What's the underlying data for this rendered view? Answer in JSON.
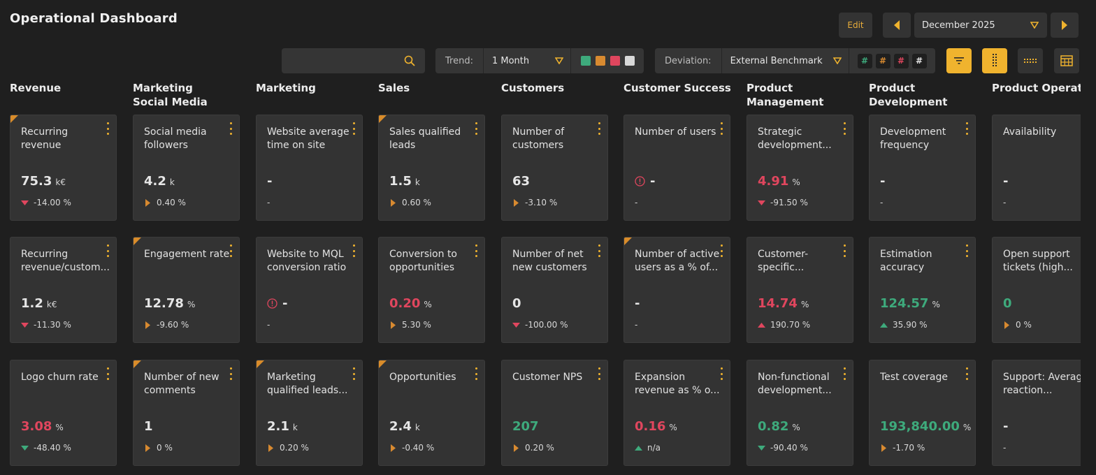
{
  "header": {
    "title": "Operational Dashboard",
    "edit_label": "Edit",
    "month": "December 2025"
  },
  "search": {
    "placeholder": "",
    "value": ""
  },
  "trend": {
    "label": "Trend:",
    "selected": "1 Month",
    "swatch_colors": [
      "#3eaa7c",
      "#d88a30",
      "#e0465e",
      "#d8d8d8"
    ]
  },
  "deviation": {
    "label": "Deviation:",
    "selected": "External Benchmark",
    "hash_glyph": "#",
    "hash_colors": [
      "#3eaa7c",
      "#d88a30",
      "#e0465e",
      "#e6e6e6"
    ]
  },
  "colors": {
    "accent": "#f0b32e",
    "red": "#e0465e",
    "green": "#3eaa7c",
    "orange": "#d88a30",
    "neutral": "#e6e6e6"
  },
  "columns": [
    {
      "title": "Revenue",
      "cards": [
        {
          "name": "Recurring revenue",
          "value": "75.3",
          "unit": "k€",
          "value_color": "neutral",
          "delta": "-14.00 %",
          "arrow": "down-red",
          "flag": true,
          "warn": false
        },
        {
          "name": "Recurring revenue/custom...",
          "value": "1.2",
          "unit": "k€",
          "value_color": "neutral",
          "delta": "-11.30 %",
          "arrow": "down-red",
          "flag": false,
          "warn": false
        },
        {
          "name": "Logo churn rate",
          "value": "3.08",
          "unit": "%",
          "value_color": "red",
          "delta": "-48.40 %",
          "arrow": "down-green",
          "flag": false,
          "warn": false
        }
      ]
    },
    {
      "title": "Marketing Social Media",
      "cards": [
        {
          "name": "Social media followers",
          "value": "4.2",
          "unit": "k",
          "value_color": "neutral",
          "delta": "0.40 %",
          "arrow": "right-orange",
          "flag": false,
          "warn": false
        },
        {
          "name": "Engagement rate",
          "value": "12.78",
          "unit": "%",
          "value_color": "neutral",
          "delta": "-9.60 %",
          "arrow": "right-orange",
          "flag": true,
          "warn": false
        },
        {
          "name": "Number of new comments",
          "value": "1",
          "unit": "",
          "value_color": "neutral",
          "delta": "0 %",
          "arrow": "right-orange",
          "flag": true,
          "warn": false
        }
      ]
    },
    {
      "title": "Marketing",
      "cards": [
        {
          "name": "Website average time on site",
          "value": "-",
          "unit": "",
          "value_color": "neutral",
          "delta": "-",
          "arrow": "",
          "flag": false,
          "warn": false
        },
        {
          "name": "Website to MQL conversion ratio",
          "value": "-",
          "unit": "",
          "value_color": "neutral",
          "delta": "-",
          "arrow": "",
          "flag": false,
          "warn": true
        },
        {
          "name": "Marketing qualified leads...",
          "value": "2.1",
          "unit": "k",
          "value_color": "neutral",
          "delta": "0.20 %",
          "arrow": "right-orange",
          "flag": true,
          "warn": false
        }
      ]
    },
    {
      "title": "Sales",
      "cards": [
        {
          "name": "Sales qualified leads",
          "value": "1.5",
          "unit": "k",
          "value_color": "neutral",
          "delta": "0.60 %",
          "arrow": "right-orange",
          "flag": true,
          "warn": false
        },
        {
          "name": "Conversion to opportunities",
          "value": "0.20",
          "unit": "%",
          "value_color": "red",
          "delta": "5.30 %",
          "arrow": "right-orange",
          "flag": false,
          "warn": false
        },
        {
          "name": "Opportunities",
          "value": "2.4",
          "unit": "k",
          "value_color": "neutral",
          "delta": "-0.40 %",
          "arrow": "right-orange",
          "flag": true,
          "warn": false
        }
      ]
    },
    {
      "title": "Customers",
      "cards": [
        {
          "name": "Number of customers",
          "value": "63",
          "unit": "",
          "value_color": "neutral",
          "delta": "-3.10 %",
          "arrow": "right-orange",
          "flag": false,
          "warn": false
        },
        {
          "name": "Number of net new customers",
          "value": "0",
          "unit": "",
          "value_color": "neutral",
          "delta": "-100.00 %",
          "arrow": "down-red",
          "flag": false,
          "warn": false
        },
        {
          "name": "Customer NPS",
          "value": "207",
          "unit": "",
          "value_color": "green",
          "delta": "0.20 %",
          "arrow": "right-orange",
          "flag": false,
          "warn": false
        }
      ]
    },
    {
      "title": "Customer Success",
      "cards": [
        {
          "name": "Number of users",
          "value": "-",
          "unit": "",
          "value_color": "neutral",
          "delta": "-",
          "arrow": "",
          "flag": false,
          "warn": true
        },
        {
          "name": "Number of active users as a % of...",
          "value": "-",
          "unit": "",
          "value_color": "neutral",
          "delta": "-",
          "arrow": "",
          "flag": true,
          "warn": false
        },
        {
          "name": "Expansion revenue as % o...",
          "value": "0.16",
          "unit": "%",
          "value_color": "red",
          "delta": "n/a",
          "arrow": "up-green",
          "flag": false,
          "warn": false
        }
      ]
    },
    {
      "title": "Product Management",
      "cards": [
        {
          "name": "Strategic development...",
          "value": "4.91",
          "unit": "%",
          "value_color": "red",
          "delta": "-91.50 %",
          "arrow": "down-red",
          "flag": false,
          "warn": false
        },
        {
          "name": "Customer-specific...",
          "value": "14.74",
          "unit": "%",
          "value_color": "red",
          "delta": "190.70 %",
          "arrow": "up-red",
          "flag": false,
          "warn": false
        },
        {
          "name": "Non-functional development...",
          "value": "0.82",
          "unit": "%",
          "value_color": "green",
          "delta": "-90.40 %",
          "arrow": "down-green",
          "flag": false,
          "warn": false
        }
      ]
    },
    {
      "title": "Product Development",
      "cards": [
        {
          "name": "Development frequency",
          "value": "-",
          "unit": "",
          "value_color": "neutral",
          "delta": "-",
          "arrow": "",
          "flag": false,
          "warn": false
        },
        {
          "name": "Estimation accuracy",
          "value": "124.57",
          "unit": "%",
          "value_color": "green",
          "delta": "35.90 %",
          "arrow": "up-green",
          "flag": false,
          "warn": false
        },
        {
          "name": "Test coverage",
          "value": "193,840.00",
          "unit": "%",
          "value_color": "green",
          "delta": "-1.70 %",
          "arrow": "right-orange",
          "flag": false,
          "warn": false
        }
      ]
    },
    {
      "title": "Product Operations",
      "cards": [
        {
          "name": "Availability",
          "value": "-",
          "unit": "",
          "value_color": "neutral",
          "delta": "-",
          "arrow": "",
          "flag": false,
          "warn": false
        },
        {
          "name": "Open support tickets (high...",
          "value": "0",
          "unit": "",
          "value_color": "green",
          "delta": "0 %",
          "arrow": "right-orange",
          "flag": false,
          "warn": false
        },
        {
          "name": "Support: Average reaction...",
          "value": "-",
          "unit": "",
          "value_color": "neutral",
          "delta": "-",
          "arrow": "",
          "flag": false,
          "warn": false
        }
      ]
    }
  ]
}
